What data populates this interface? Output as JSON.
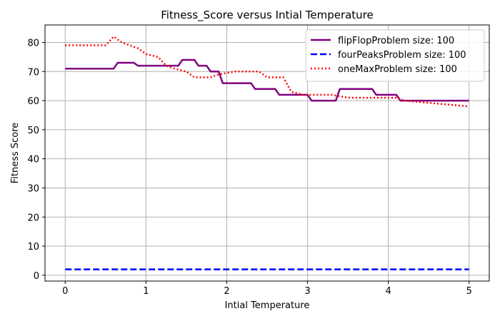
{
  "chart_data": {
    "type": "line",
    "title": "Fitness_Score versus Intial Temperature",
    "xlabel": "Intial Temperature",
    "ylabel": "Fitness Score",
    "xlim": [
      -0.25,
      5.25
    ],
    "ylim": [
      -2,
      86
    ],
    "xticks": [
      "0",
      "1",
      "2",
      "3",
      "4",
      "5"
    ],
    "yticks": [
      "0",
      "10",
      "20",
      "30",
      "40",
      "50",
      "60",
      "70",
      "80"
    ],
    "grid": true,
    "legend_position": "top-right",
    "series": [
      {
        "name": "flipFlopProblem size: 100",
        "color": "#800080",
        "style": "solid",
        "x": [
          0,
          0.6,
          0.65,
          0.85,
          0.9,
          1.4,
          1.45,
          1.6,
          1.65,
          1.75,
          1.8,
          1.9,
          1.95,
          2.3,
          2.35,
          2.6,
          2.65,
          3.0,
          3.05,
          3.35,
          3.4,
          3.8,
          3.85,
          4.1,
          4.15,
          5.0
        ],
        "y": [
          71,
          71,
          73,
          73,
          72,
          72,
          74,
          74,
          72,
          72,
          70,
          70,
          66,
          66,
          64,
          64,
          62,
          62,
          60,
          60,
          64,
          64,
          62,
          62,
          60,
          60
        ]
      },
      {
        "name": "fourPeaksProblem size: 100",
        "color": "#0000ff",
        "style": "dashed",
        "x": [
          0,
          5.0
        ],
        "y": [
          2,
          2
        ]
      },
      {
        "name": "oneMaxProblem size: 100",
        "color": "#ff0000",
        "style": "dotted",
        "x": [
          0,
          0.5,
          0.6,
          0.7,
          0.8,
          0.9,
          1.0,
          1.15,
          1.25,
          1.35,
          1.5,
          1.6,
          1.8,
          1.9,
          2.1,
          2.4,
          2.5,
          2.7,
          2.8,
          2.95,
          3.3,
          3.5,
          4.1,
          4.2,
          4.6,
          5.0
        ],
        "y": [
          79,
          79,
          82,
          80,
          79,
          78,
          76,
          75,
          72,
          71,
          70,
          68,
          68,
          69,
          70,
          70,
          68,
          68,
          63,
          62,
          62,
          61,
          61,
          60,
          59,
          58
        ]
      }
    ]
  }
}
